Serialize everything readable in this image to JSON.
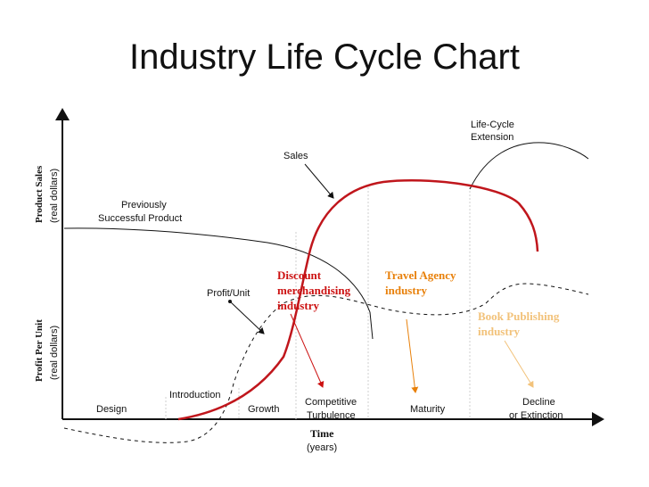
{
  "title": "Industry Life Cycle Chart",
  "axes": {
    "y_top_title": "Product Sales",
    "y_top_unit": "(real dollars)",
    "y_bottom_title": "Profit Per Unit",
    "y_bottom_unit": "(real dollars)",
    "x_title": "Time",
    "x_unit": "(years)"
  },
  "curve_labels": {
    "sales": "Sales",
    "previously_line1": "Previously",
    "previously_line2": "Successful Product",
    "profit_unit": "Profit/Unit",
    "extension_line1": "Life-Cycle",
    "extension_line2": "Extension"
  },
  "stages": {
    "design": "Design",
    "introduction": "Introduction",
    "growth": "Growth",
    "competitive_line1": "Competitive",
    "competitive_line2": "Turbulence",
    "maturity": "Maturity",
    "decline_line1": "Decline",
    "decline_line2": "or Extinction"
  },
  "annotations": [
    {
      "lines": [
        "Discount",
        "merchandising",
        "industry"
      ],
      "color": "#cc1111"
    },
    {
      "lines": [
        "Travel Agency",
        "industry"
      ],
      "color": "#e8800a"
    },
    {
      "lines": [
        "Book Publishing",
        "industry"
      ],
      "color": "#f2c27a"
    }
  ],
  "colors": {
    "sales_curve": "#c0161c",
    "discount": "#cc1111",
    "travel": "#e8800a",
    "book": "#f2c27a"
  }
}
